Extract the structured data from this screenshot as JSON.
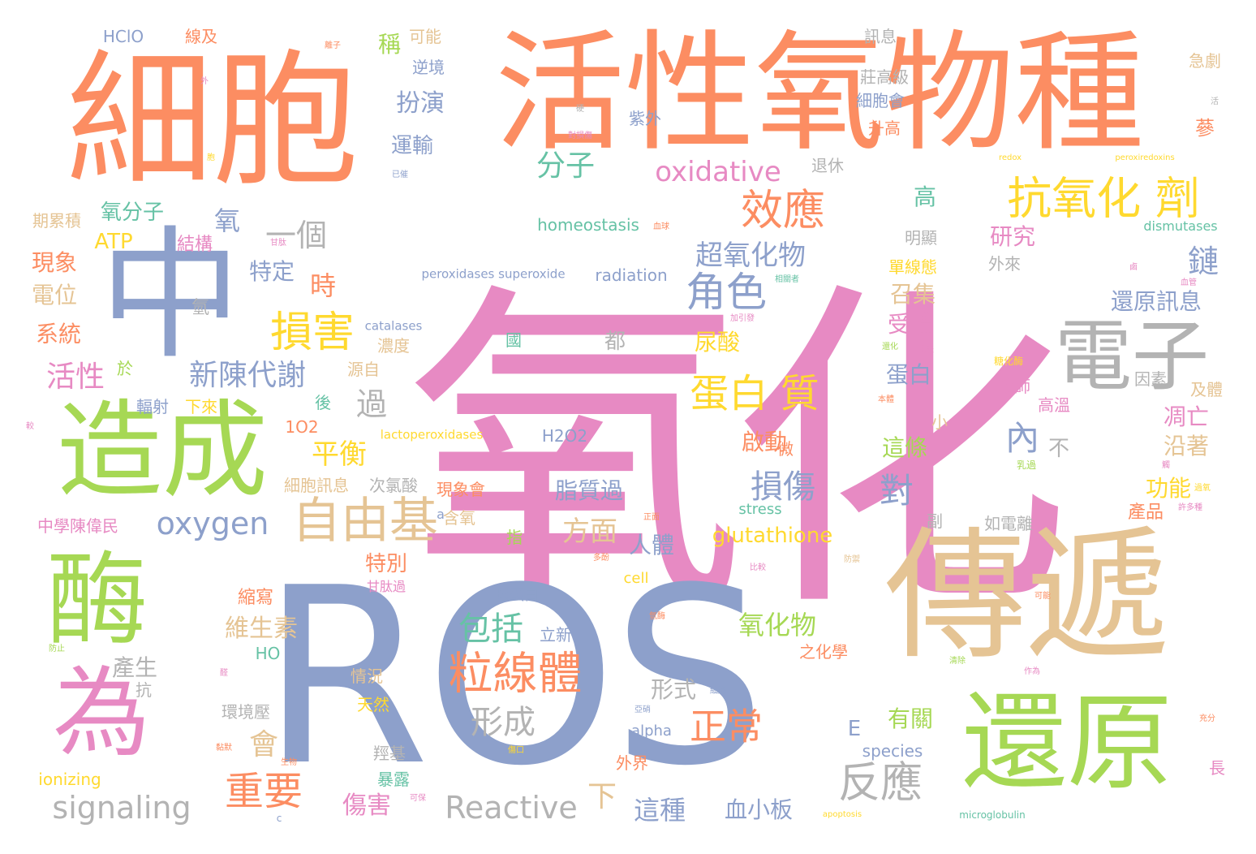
{
  "palette": {
    "pink": "#E78AC3",
    "blue": "#8DA0CB",
    "orange": "#FC8D62",
    "green": "#A6D854",
    "tan": "#E5C494",
    "gray": "#B3B3B3",
    "teal": "#66C2A5",
    "yellow": "#FFD92F"
  },
  "words": [
    {
      "text": "氧化",
      "color": "pink"
    },
    {
      "text": "ROS",
      "color": "blue"
    },
    {
      "text": "細胞",
      "color": "orange"
    },
    {
      "text": "活性氧物種",
      "color": "orange"
    },
    {
      "text": "中",
      "color": "blue"
    },
    {
      "text": "造成",
      "color": "green"
    },
    {
      "text": "傳遞",
      "color": "tan"
    },
    {
      "text": "還原",
      "color": "green"
    },
    {
      "text": "酶",
      "color": "green"
    },
    {
      "text": "為",
      "color": "pink"
    },
    {
      "text": "電子",
      "color": "gray"
    },
    {
      "text": "粒線體",
      "color": "orange"
    },
    {
      "text": "自由基",
      "color": "tan"
    },
    {
      "text": "抗氧化 劑",
      "color": "yellow"
    },
    {
      "text": "損害",
      "color": "yellow"
    },
    {
      "text": "效應",
      "color": "orange"
    },
    {
      "text": "角色",
      "color": "blue"
    },
    {
      "text": "蛋白 質",
      "color": "yellow"
    },
    {
      "text": "新陳代謝",
      "color": "blue"
    },
    {
      "text": "反應",
      "color": "gray"
    },
    {
      "text": "oxidative",
      "color": "pink"
    },
    {
      "text": "oxygen",
      "color": "blue"
    },
    {
      "text": "signaling",
      "color": "gray"
    },
    {
      "text": "Reactive",
      "color": "gray"
    },
    {
      "text": "重要",
      "color": "orange"
    },
    {
      "text": "正常",
      "color": "orange"
    },
    {
      "text": "包括",
      "color": "teal"
    },
    {
      "text": "形成",
      "color": "gray"
    },
    {
      "text": "損傷",
      "color": "blue"
    },
    {
      "text": "超氧化物",
      "color": "blue"
    },
    {
      "text": "分子",
      "color": "teal"
    },
    {
      "text": "一個",
      "color": "gray"
    },
    {
      "text": "過",
      "color": "gray"
    },
    {
      "text": "內",
      "color": "blue"
    },
    {
      "text": "對",
      "color": "blue"
    },
    {
      "text": "平衡",
      "color": "yellow"
    },
    {
      "text": "方面",
      "color": "tan"
    },
    {
      "text": "扮演",
      "color": "blue"
    },
    {
      "text": "運輸",
      "color": "blue"
    },
    {
      "text": "鏈",
      "color": "blue"
    },
    {
      "text": "氧",
      "color": "blue"
    },
    {
      "text": "時",
      "color": "orange"
    },
    {
      "text": "glutathione",
      "color": "yellow"
    },
    {
      "text": "氧化物",
      "color": "green"
    },
    {
      "text": "脂質過",
      "color": "blue"
    },
    {
      "text": "啟動",
      "color": "orange"
    },
    {
      "text": "這種",
      "color": "blue"
    },
    {
      "text": "血小板",
      "color": "blue"
    },
    {
      "text": "下",
      "color": "tan"
    },
    {
      "text": "會",
      "color": "tan"
    },
    {
      "text": "維生素",
      "color": "tan"
    },
    {
      "text": "傷害",
      "color": "pink"
    },
    {
      "text": "活性",
      "color": "pink"
    },
    {
      "text": "現象",
      "color": "orange"
    },
    {
      "text": "電位",
      "color": "tan"
    },
    {
      "text": "系統",
      "color": "orange"
    },
    {
      "text": "氧分子",
      "color": "teal"
    },
    {
      "text": "ATP",
      "color": "yellow"
    },
    {
      "text": "結構",
      "color": "pink"
    },
    {
      "text": "特定",
      "color": "blue"
    },
    {
      "text": "研究",
      "color": "pink"
    },
    {
      "text": "還原訊息",
      "color": "blue"
    },
    {
      "text": "召集",
      "color": "tan"
    },
    {
      "text": "受體",
      "color": "pink"
    },
    {
      "text": "蛋白",
      "color": "blue"
    },
    {
      "text": "這條",
      "color": "green"
    },
    {
      "text": "凋亡",
      "color": "pink"
    },
    {
      "text": "沿著",
      "color": "tan"
    },
    {
      "text": "功能",
      "color": "yellow"
    },
    {
      "text": "產品",
      "color": "orange"
    },
    {
      "text": "尿酸",
      "color": "yellow"
    },
    {
      "text": "人體",
      "color": "blue"
    },
    {
      "text": "特別",
      "color": "orange"
    },
    {
      "text": "縮寫",
      "color": "orange"
    },
    {
      "text": "產生",
      "color": "gray"
    },
    {
      "text": "形式",
      "color": "gray"
    },
    {
      "text": "有關",
      "color": "green"
    },
    {
      "text": "高",
      "color": "teal"
    },
    {
      "text": "稱",
      "color": "green"
    },
    {
      "text": "可能",
      "color": "tan"
    },
    {
      "text": "HClO",
      "color": "blue"
    },
    {
      "text": "線及",
      "color": "orange"
    },
    {
      "text": "訊息",
      "color": "gray"
    },
    {
      "text": "逆境",
      "color": "blue"
    },
    {
      "text": "急劇",
      "color": "tan"
    },
    {
      "text": "莊高級",
      "color": "gray"
    },
    {
      "text": "細胞會",
      "color": "blue"
    },
    {
      "text": "升高",
      "color": "orange"
    },
    {
      "text": "蔘",
      "color": "orange"
    },
    {
      "text": "紫外",
      "color": "blue"
    },
    {
      "text": "退休",
      "color": "gray"
    },
    {
      "text": "homeostasis",
      "color": "teal"
    },
    {
      "text": "radiation",
      "color": "blue"
    },
    {
      "text": "dismutases",
      "color": "teal"
    },
    {
      "text": "明顯",
      "color": "gray"
    },
    {
      "text": "外來",
      "color": "gray"
    },
    {
      "text": "單線態",
      "color": "yellow"
    },
    {
      "text": "peroxidases superoxide",
      "color": "blue"
    },
    {
      "text": "catalases",
      "color": "blue"
    },
    {
      "text": "濃度",
      "color": "tan"
    },
    {
      "text": "源自",
      "color": "tan"
    },
    {
      "text": "輻射",
      "color": "blue"
    },
    {
      "text": "下來",
      "color": "yellow"
    },
    {
      "text": "期累積",
      "color": "tan"
    },
    {
      "text": "1O2",
      "color": "orange"
    },
    {
      "text": "lactoperoxidases",
      "color": "yellow"
    },
    {
      "text": "H2O2",
      "color": "blue"
    },
    {
      "text": "細胞訊息",
      "color": "tan"
    },
    {
      "text": "次氯酸",
      "color": "gray"
    },
    {
      "text": "現象會",
      "color": "orange"
    },
    {
      "text": "中學陳偉民",
      "color": "pink"
    },
    {
      "text": "含氧",
      "color": "tan"
    },
    {
      "text": "如電離",
      "color": "gray"
    },
    {
      "text": "副",
      "color": "gray"
    },
    {
      "text": "stress",
      "color": "teal"
    },
    {
      "text": "cell",
      "color": "yellow"
    },
    {
      "text": "球蛋白",
      "color": "blue"
    },
    {
      "text": "立新",
      "color": "blue"
    },
    {
      "text": "甘肽過",
      "color": "pink"
    },
    {
      "text": "情況",
      "color": "tan"
    },
    {
      "text": "天然",
      "color": "yellow"
    },
    {
      "text": "HO",
      "color": "teal"
    },
    {
      "text": "之化學",
      "color": "orange"
    },
    {
      "text": "抗",
      "color": "gray"
    },
    {
      "text": "環境壓",
      "color": "gray"
    },
    {
      "text": "alpha",
      "color": "blue"
    },
    {
      "text": "species",
      "color": "blue"
    },
    {
      "text": "羥基",
      "color": "gray"
    },
    {
      "text": "外界",
      "color": "orange"
    },
    {
      "text": "暴露",
      "color": "teal"
    },
    {
      "text": "ionizing",
      "color": "yellow"
    },
    {
      "text": "E",
      "color": "blue"
    },
    {
      "text": "不",
      "color": "gray"
    },
    {
      "text": "小",
      "color": "tan"
    },
    {
      "text": "微",
      "color": "orange"
    },
    {
      "text": "都",
      "color": "gray"
    },
    {
      "text": "國",
      "color": "teal"
    },
    {
      "text": "因素",
      "color": "gray"
    },
    {
      "text": "高溫",
      "color": "pink"
    },
    {
      "text": "教師",
      "color": "pink"
    },
    {
      "text": "及體",
      "color": "tan"
    },
    {
      "text": "長",
      "color": "pink"
    },
    {
      "text": "指",
      "color": "green"
    },
    {
      "text": "a",
      "color": "blue"
    },
    {
      "text": "後",
      "color": "teal"
    },
    {
      "text": "於",
      "color": "green"
    },
    {
      "text": "氫",
      "color": "gray"
    },
    {
      "text": "apoptosis",
      "color": "yellow"
    },
    {
      "text": "microglobulin",
      "color": "teal"
    },
    {
      "text": "redox",
      "color": "yellow"
    },
    {
      "text": "peroxiredoxins",
      "color": "yellow"
    },
    {
      "text": "離子",
      "color": "orange"
    },
    {
      "text": "外",
      "color": "pink"
    },
    {
      "text": "硬",
      "color": "gray"
    },
    {
      "text": "對損傷",
      "color": "pink"
    },
    {
      "text": "已催",
      "color": "blue"
    },
    {
      "text": "活",
      "color": "gray"
    },
    {
      "text": "血球",
      "color": "orange"
    },
    {
      "text": "甘肽",
      "color": "pink"
    },
    {
      "text": "鹵",
      "color": "pink"
    },
    {
      "text": "胞",
      "color": "yellow"
    },
    {
      "text": "相關者",
      "color": "teal"
    },
    {
      "text": "加引發",
      "color": "pink"
    },
    {
      "text": "還化",
      "color": "green"
    },
    {
      "text": "代表",
      "color": "pink"
    },
    {
      "text": "本體",
      "color": "orange"
    },
    {
      "text": "較",
      "color": "pink"
    },
    {
      "text": "乳過",
      "color": "green"
    },
    {
      "text": "觸",
      "color": "pink"
    },
    {
      "text": "糖化酶",
      "color": "yellow"
    },
    {
      "text": "傷口",
      "color": "yellow"
    },
    {
      "text": "亞硝",
      "color": "blue"
    },
    {
      "text": "生物",
      "color": "orange"
    },
    {
      "text": "醛",
      "color": "pink"
    },
    {
      "text": "細胞",
      "color": "blue"
    },
    {
      "text": "黏默",
      "color": "orange"
    },
    {
      "text": "防止",
      "color": "green"
    },
    {
      "text": "可能",
      "color": "orange"
    },
    {
      "text": "比較",
      "color": "pink"
    },
    {
      "text": "氫酶",
      "color": "orange"
    },
    {
      "text": "清除",
      "color": "green"
    },
    {
      "text": "過氧",
      "color": "yellow"
    },
    {
      "text": "多酚",
      "color": "orange"
    },
    {
      "text": "充分",
      "color": "orange"
    },
    {
      "text": "作為",
      "color": "pink"
    },
    {
      "text": "許多種",
      "color": "pink"
    },
    {
      "text": "防禦",
      "color": "tan"
    },
    {
      "text": "可保",
      "color": "pink"
    },
    {
      "text": "c",
      "color": "blue"
    },
    {
      "text": "正面",
      "color": "orange"
    },
    {
      "text": "血管",
      "color": "pink"
    }
  ]
}
